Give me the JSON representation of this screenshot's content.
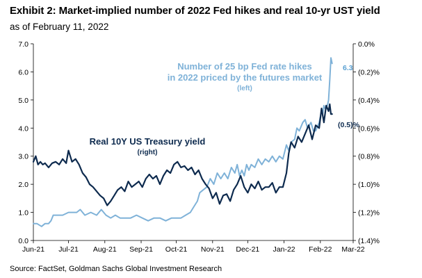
{
  "title": "Exhibit 2: Market-implied number of 2022 Fed hikes and real 10-yr UST yield",
  "subtitle": "as of February 11, 2022",
  "source": "Source: FactSet, Goldman Sachs Global Investment Research",
  "colors": {
    "hikes": "#7fb2d8",
    "real_yield": "#0d2a4e"
  },
  "chart_data": {
    "type": "line",
    "x_ticks": [
      "Jun-21",
      "Jul-21",
      "Aug-21",
      "Sep-21",
      "Oct-21",
      "Nov-21",
      "Dec-21",
      "Jan-22",
      "Feb-22",
      "Mar-22"
    ],
    "x_range": [
      "2021-06-01",
      "2022-03-01"
    ],
    "y_left": {
      "ticks": [
        "0.0",
        "1.0",
        "2.0",
        "3.0",
        "4.0",
        "5.0",
        "6.0",
        "7.0"
      ],
      "range": [
        0,
        7
      ]
    },
    "y_right": {
      "ticks": [
        "(1.4)%",
        "(1.2)%",
        "(1.0)%",
        "(0.8)%",
        "(0.6)%",
        "(0.4)%",
        "(0.2)%",
        "0.0%"
      ],
      "range": [
        -1.4,
        0.0
      ]
    },
    "grid": false,
    "annotations": {
      "hikes_label": [
        "Number of 25 bp Fed rate hikes",
        "in 2022 priced by the futures market"
      ],
      "hikes_axis": "(left)",
      "yield_label": "Real 10Y US Treasury yield",
      "yield_axis": "(right)",
      "hikes_end": "6.3",
      "yield_end": "(0.5)%"
    },
    "series": [
      {
        "key": "hikes",
        "axis": "left",
        "x": [
          "2021-06-01",
          "2021-06-04",
          "2021-06-08",
          "2021-06-11",
          "2021-06-14",
          "2021-06-16",
          "2021-06-18",
          "2021-06-22",
          "2021-06-26",
          "2021-07-01",
          "2021-07-05",
          "2021-07-08",
          "2021-07-11",
          "2021-07-15",
          "2021-07-20",
          "2021-07-25",
          "2021-07-29",
          "2021-08-02",
          "2021-08-06",
          "2021-08-10",
          "2021-08-14",
          "2021-08-18",
          "2021-08-23",
          "2021-08-28",
          "2021-09-02",
          "2021-09-07",
          "2021-09-12",
          "2021-09-17",
          "2021-09-22",
          "2021-09-27",
          "2021-10-01",
          "2021-10-05",
          "2021-10-09",
          "2021-10-13",
          "2021-10-16",
          "2021-10-19",
          "2021-10-21",
          "2021-10-24",
          "2021-10-27",
          "2021-10-30",
          "2021-11-02",
          "2021-11-05",
          "2021-11-08",
          "2021-11-11",
          "2021-11-14",
          "2021-11-17",
          "2021-11-20",
          "2021-11-22",
          "2021-11-24",
          "2021-11-26",
          "2021-11-28",
          "2021-11-30",
          "2021-12-02",
          "2021-12-04",
          "2021-12-07",
          "2021-12-10",
          "2021-12-13",
          "2021-12-16",
          "2021-12-19",
          "2021-12-22",
          "2021-12-25",
          "2021-12-28",
          "2021-12-31",
          "2022-01-03",
          "2022-01-05",
          "2022-01-07",
          "2022-01-10",
          "2022-01-12",
          "2022-01-14",
          "2022-01-17",
          "2022-01-19",
          "2022-01-21",
          "2022-01-24",
          "2022-01-26",
          "2022-01-28",
          "2022-01-31",
          "2022-02-02",
          "2022-02-03",
          "2022-02-04",
          "2022-02-05",
          "2022-02-07",
          "2022-02-08",
          "2022-02-09",
          "2022-02-10",
          "2022-02-11"
        ],
        "values": [
          0.6,
          0.6,
          0.5,
          0.6,
          0.6,
          0.7,
          0.9,
          0.9,
          0.9,
          1.0,
          1.0,
          1.0,
          1.1,
          0.9,
          1.0,
          0.9,
          1.1,
          0.9,
          0.8,
          0.9,
          0.8,
          0.8,
          0.8,
          0.9,
          0.8,
          0.7,
          0.8,
          0.8,
          0.7,
          0.8,
          0.8,
          0.8,
          0.9,
          1.0,
          1.2,
          1.4,
          1.7,
          1.8,
          1.9,
          2.2,
          2.0,
          2.4,
          2.2,
          2.4,
          2.2,
          2.6,
          2.4,
          2.7,
          2.3,
          2.5,
          2.3,
          2.7,
          2.5,
          2.7,
          2.6,
          2.9,
          2.7,
          2.9,
          2.8,
          3.0,
          2.8,
          3.0,
          2.9,
          3.4,
          3.2,
          3.5,
          3.6,
          4.0,
          3.9,
          4.2,
          4.3,
          4.0,
          4.2,
          3.9,
          3.9,
          4.2,
          4.6,
          4.5,
          4.8,
          4.7,
          4.8,
          5.0,
          5.7,
          6.5,
          6.3
        ]
      },
      {
        "key": "real_yield",
        "axis": "right",
        "x": [
          "2021-06-01",
          "2021-06-03",
          "2021-06-05",
          "2021-06-07",
          "2021-06-09",
          "2021-06-11",
          "2021-06-14",
          "2021-06-17",
          "2021-06-20",
          "2021-06-23",
          "2021-06-26",
          "2021-06-29",
          "2021-07-01",
          "2021-07-04",
          "2021-07-07",
          "2021-07-10",
          "2021-07-13",
          "2021-07-16",
          "2021-07-19",
          "2021-07-22",
          "2021-07-25",
          "2021-07-28",
          "2021-07-31",
          "2021-08-03",
          "2021-08-06",
          "2021-08-09",
          "2021-08-12",
          "2021-08-15",
          "2021-08-18",
          "2021-08-21",
          "2021-08-24",
          "2021-08-27",
          "2021-08-30",
          "2021-09-02",
          "2021-09-05",
          "2021-09-08",
          "2021-09-11",
          "2021-09-14",
          "2021-09-17",
          "2021-09-20",
          "2021-09-23",
          "2021-09-26",
          "2021-09-29",
          "2021-10-02",
          "2021-10-05",
          "2021-10-08",
          "2021-10-11",
          "2021-10-14",
          "2021-10-17",
          "2021-10-20",
          "2021-10-23",
          "2021-10-26",
          "2021-10-29",
          "2021-11-01",
          "2021-11-04",
          "2021-11-07",
          "2021-11-10",
          "2021-11-13",
          "2021-11-16",
          "2021-11-19",
          "2021-11-22",
          "2021-11-25",
          "2021-11-28",
          "2021-12-01",
          "2021-12-04",
          "2021-12-07",
          "2021-12-10",
          "2021-12-13",
          "2021-12-16",
          "2021-12-19",
          "2021-12-22",
          "2021-12-25",
          "2021-12-28",
          "2021-12-31",
          "2022-01-03",
          "2022-01-05",
          "2022-01-07",
          "2022-01-10",
          "2022-01-13",
          "2022-01-16",
          "2022-01-19",
          "2022-01-22",
          "2022-01-25",
          "2022-01-28",
          "2022-01-31",
          "2022-02-02",
          "2022-02-04",
          "2022-02-06",
          "2022-02-08",
          "2022-02-09",
          "2022-02-10",
          "2022-02-11"
        ],
        "values": [
          -0.84,
          -0.8,
          -0.86,
          -0.84,
          -0.86,
          -0.85,
          -0.88,
          -0.85,
          -0.84,
          -0.86,
          -0.82,
          -0.85,
          -0.76,
          -0.84,
          -0.82,
          -0.86,
          -0.92,
          -0.95,
          -1.0,
          -1.02,
          -1.05,
          -1.08,
          -1.1,
          -1.15,
          -1.12,
          -1.08,
          -1.04,
          -1.02,
          -1.05,
          -0.98,
          -1.02,
          -1.0,
          -0.98,
          -1.02,
          -0.96,
          -0.93,
          -0.96,
          -0.94,
          -1.0,
          -0.94,
          -0.9,
          -0.92,
          -0.86,
          -0.84,
          -0.88,
          -0.87,
          -0.9,
          -0.88,
          -0.93,
          -0.9,
          -0.96,
          -1.0,
          -1.03,
          -1.1,
          -1.06,
          -1.14,
          -1.08,
          -1.07,
          -1.12,
          -1.04,
          -1.0,
          -0.94,
          -1.02,
          -1.06,
          -1.0,
          -1.03,
          -0.98,
          -1.04,
          -1.02,
          -1.02,
          -0.99,
          -1.06,
          -1.02,
          -1.02,
          -0.92,
          -0.78,
          -0.7,
          -0.74,
          -0.66,
          -0.7,
          -0.64,
          -0.58,
          -0.68,
          -0.58,
          -0.6,
          -0.46,
          -0.56,
          -0.44,
          -0.48,
          -0.43,
          -0.5,
          -0.5
        ]
      }
    ]
  }
}
